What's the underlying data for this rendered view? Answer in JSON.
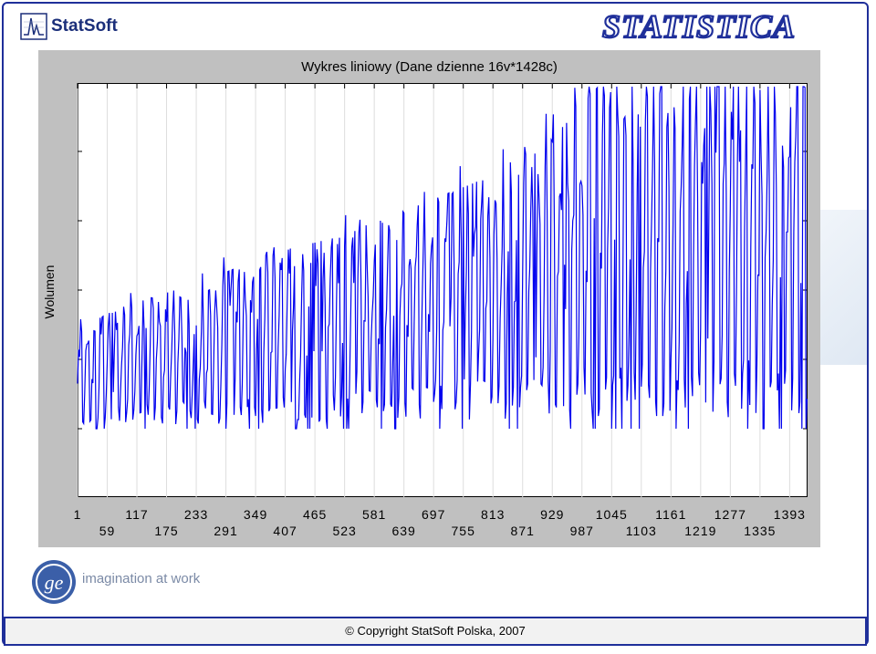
{
  "brand": {
    "left_logo_text": "StatSoft",
    "right_logo_text": "STATISTICA",
    "accent": "#1f2f9a"
  },
  "chart_data": {
    "type": "line",
    "title": "Wykres liniowy (Dane dzienne 16v*1428c)",
    "xlabel": "",
    "ylabel": "Wolumen",
    "x_ticks_top": [
      "1",
      "117",
      "233",
      "349",
      "465",
      "581",
      "697",
      "813",
      "929",
      "1045",
      "1161",
      "1277",
      "1393"
    ],
    "x_ticks_bottom": [
      "59",
      "175",
      "291",
      "407",
      "523",
      "639",
      "755",
      "871",
      "987",
      "1103",
      "1219",
      "1335"
    ],
    "xlim": [
      1,
      1428
    ],
    "y_tick_labels_shown": false,
    "grid": true,
    "series_color": "#0000ee",
    "series": [
      {
        "name": "",
        "trend_levels_relative": [
          0.19,
          0.24,
          0.28,
          0.33,
          0.36,
          0.41,
          0.46,
          0.52,
          0.66,
          0.68,
          0.67,
          0.65
        ]
      }
    ]
  },
  "footer": {
    "ge_tagline": "imagination at work",
    "copyright": "© Copyright StatSoft Polska, 2007"
  }
}
